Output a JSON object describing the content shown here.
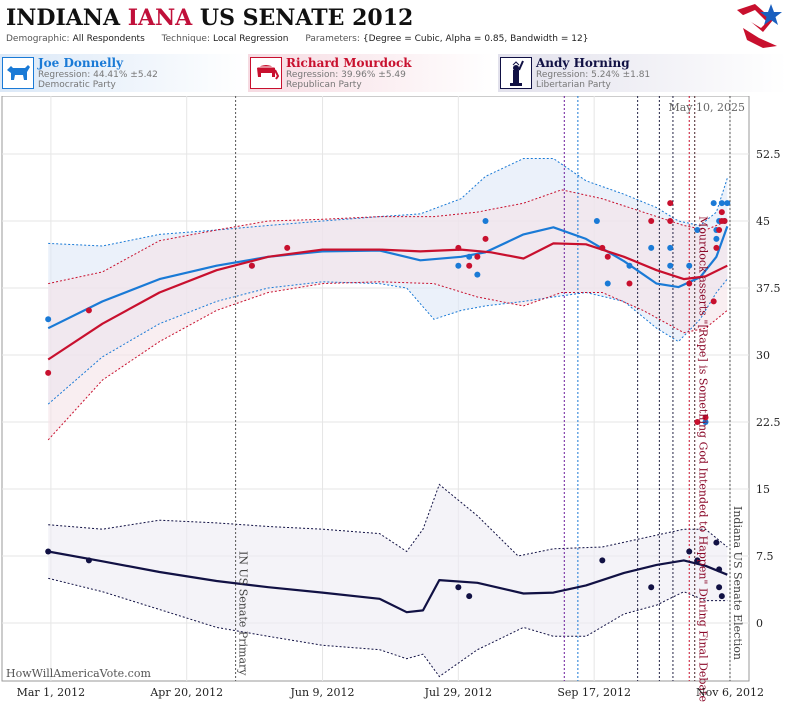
{
  "header": {
    "title_state": "INDIANA",
    "title_highlight": "IANA",
    "title_race": "US SENATE 2012",
    "demographic_label": "Demographic:",
    "demographic_value": "All Respondents",
    "technique_label": "Technique:",
    "technique_value": "Local Regression",
    "parameters_label": "Parameters:",
    "parameters_value": "{Degree = Cubic, Alpha = 0.85, Bandwidth = 12}"
  },
  "logo_icon": "star-flag-logo-icon",
  "candidates": [
    {
      "name": "Joe Donnelly",
      "regression": "Regression: 44.41% ±5.42",
      "party": "Democratic Party",
      "color": "#1a7ad6",
      "icon": "donkey-icon"
    },
    {
      "name": "Richard Mourdock",
      "regression": "Regression: 39.96% ±5.49",
      "party": "Republican Party",
      "color": "#c8102e",
      "icon": "elephant-icon"
    },
    {
      "name": "Andy Horning",
      "regression": "Regression: 5.24% ±1.81",
      "party": "Libertarian Party",
      "color": "#111144",
      "icon": "statue-of-liberty-icon"
    }
  ],
  "chart_data": {
    "type": "scatter",
    "date_stamp": "May 10, 2025",
    "watermark": "HowWillAmericaVote.com",
    "x_ticks": [
      "Mar 1, 2012",
      "Apr 20, 2012",
      "Jun 9, 2012",
      "Jul 29, 2012",
      "Sep 17, 2012",
      "Nov 6, 2012"
    ],
    "xlim": [
      "2012-02-12",
      "2012-11-13"
    ],
    "y_ticks": [
      0,
      7.5,
      15,
      22.5,
      30,
      37.5,
      45,
      52.5
    ],
    "ylim": [
      -6.5,
      59
    ],
    "grid": true,
    "annotations": [
      {
        "date": "2012-05-08",
        "text": "IN US Senate Primary",
        "color": "#444444"
      },
      {
        "date": "2012-11-06",
        "text": "Indiana US Senate Election",
        "color": "#444444"
      },
      {
        "date": "2012-10-24",
        "text": "Mourdock asserts \"[Rape] is Something God Intended to Happen\" During Final Debate",
        "color": "#8b0a2a"
      }
    ],
    "event_lines": [
      {
        "date": "2012-09-06",
        "color": "#6a1b9a"
      },
      {
        "date": "2012-09-11",
        "color": "#1a7ad6"
      },
      {
        "date": "2012-10-03",
        "color": "#222244"
      },
      {
        "date": "2012-10-11",
        "color": "#222244"
      },
      {
        "date": "2012-10-16",
        "color": "#222244"
      },
      {
        "date": "2012-10-22",
        "color": "#c8102e"
      },
      {
        "date": "2012-10-24",
        "color": "#c8102e"
      }
    ],
    "series": [
      {
        "name": "Joe Donnelly",
        "color": "#1a7ad6",
        "band_fill": "#dde8f6",
        "line": [
          [
            "2012-02-29",
            33
          ],
          [
            "2012-03-20",
            36
          ],
          [
            "2012-04-10",
            38.5
          ],
          [
            "2012-05-01",
            40
          ],
          [
            "2012-05-20",
            41
          ],
          [
            "2012-06-09",
            41.6
          ],
          [
            "2012-06-30",
            41.7
          ],
          [
            "2012-07-15",
            40.6
          ],
          [
            "2012-07-30",
            41
          ],
          [
            "2012-08-08",
            41.5
          ],
          [
            "2012-08-22",
            43.5
          ],
          [
            "2012-09-02",
            44.3
          ],
          [
            "2012-09-14",
            43
          ],
          [
            "2012-09-28",
            40.5
          ],
          [
            "2012-10-10",
            38
          ],
          [
            "2012-10-18",
            37.6
          ],
          [
            "2012-10-26",
            38.7
          ],
          [
            "2012-11-01",
            41
          ],
          [
            "2012-11-05",
            44.4
          ]
        ],
        "upper": [
          [
            "2012-02-29",
            42.5
          ],
          [
            "2012-03-20",
            42.2
          ],
          [
            "2012-04-10",
            43.5
          ],
          [
            "2012-05-01",
            44
          ],
          [
            "2012-05-20",
            44.5
          ],
          [
            "2012-06-09",
            45
          ],
          [
            "2012-06-30",
            45.5
          ],
          [
            "2012-07-15",
            45.8
          ],
          [
            "2012-07-30",
            47.5
          ],
          [
            "2012-08-08",
            50
          ],
          [
            "2012-08-22",
            52
          ],
          [
            "2012-09-02",
            52
          ],
          [
            "2012-09-14",
            49.5
          ],
          [
            "2012-09-28",
            48
          ],
          [
            "2012-10-10",
            46.5
          ],
          [
            "2012-10-18",
            45
          ],
          [
            "2012-10-26",
            44.5
          ],
          [
            "2012-11-01",
            46
          ],
          [
            "2012-11-05",
            49.8
          ]
        ],
        "lower": [
          [
            "2012-02-29",
            24.5
          ],
          [
            "2012-03-20",
            29.8
          ],
          [
            "2012-04-10",
            33.5
          ],
          [
            "2012-05-01",
            36
          ],
          [
            "2012-05-20",
            37.5
          ],
          [
            "2012-06-09",
            38.2
          ],
          [
            "2012-06-30",
            38
          ],
          [
            "2012-07-10",
            37.5
          ],
          [
            "2012-07-20",
            34
          ],
          [
            "2012-07-30",
            35
          ],
          [
            "2012-08-08",
            35.5
          ],
          [
            "2012-08-22",
            36
          ],
          [
            "2012-09-02",
            36.5
          ],
          [
            "2012-09-14",
            37
          ],
          [
            "2012-09-28",
            36
          ],
          [
            "2012-10-10",
            33
          ],
          [
            "2012-10-18",
            31.5
          ],
          [
            "2012-10-26",
            34
          ],
          [
            "2012-11-01",
            37
          ],
          [
            "2012-11-05",
            38.5
          ]
        ],
        "points": [
          [
            "2012-02-29",
            34
          ],
          [
            "2012-05-14",
            40
          ],
          [
            "2012-07-29",
            40
          ],
          [
            "2012-08-02",
            41
          ],
          [
            "2012-08-05",
            39
          ],
          [
            "2012-08-08",
            45
          ],
          [
            "2012-09-18",
            45
          ],
          [
            "2012-09-22",
            38
          ],
          [
            "2012-09-30",
            40
          ],
          [
            "2012-10-08",
            42
          ],
          [
            "2012-10-15",
            42
          ],
          [
            "2012-10-15",
            40
          ],
          [
            "2012-10-22",
            40
          ],
          [
            "2012-10-25",
            44
          ],
          [
            "2012-10-28",
            22.5
          ],
          [
            "2012-10-31",
            47
          ],
          [
            "2012-11-01",
            43
          ],
          [
            "2012-11-01",
            44
          ],
          [
            "2012-11-02",
            45
          ],
          [
            "2012-11-03",
            47
          ],
          [
            "2012-11-04",
            45
          ],
          [
            "2012-11-05",
            47
          ]
        ]
      },
      {
        "name": "Richard Mourdock",
        "color": "#c8102e",
        "band_fill": "#f5e3e8",
        "line": [
          [
            "2012-02-29",
            29.5
          ],
          [
            "2012-03-20",
            33.5
          ],
          [
            "2012-04-10",
            37
          ],
          [
            "2012-05-01",
            39.5
          ],
          [
            "2012-05-20",
            41
          ],
          [
            "2012-06-09",
            41.8
          ],
          [
            "2012-06-30",
            41.8
          ],
          [
            "2012-07-15",
            41.6
          ],
          [
            "2012-07-30",
            41.8
          ],
          [
            "2012-08-10",
            41.5
          ],
          [
            "2012-08-22",
            40.8
          ],
          [
            "2012-09-02",
            42.5
          ],
          [
            "2012-09-14",
            42.4
          ],
          [
            "2012-09-28",
            41
          ],
          [
            "2012-10-10",
            39.5
          ],
          [
            "2012-10-20",
            38.5
          ],
          [
            "2012-10-28",
            38.8
          ],
          [
            "2012-11-05",
            40
          ]
        ],
        "upper": [
          [
            "2012-02-29",
            38
          ],
          [
            "2012-03-20",
            39.3
          ],
          [
            "2012-04-10",
            42.8
          ],
          [
            "2012-05-01",
            44
          ],
          [
            "2012-05-20",
            45
          ],
          [
            "2012-06-09",
            45.2
          ],
          [
            "2012-06-30",
            45.5
          ],
          [
            "2012-07-20",
            45.5
          ],
          [
            "2012-08-05",
            46
          ],
          [
            "2012-08-22",
            47
          ],
          [
            "2012-09-05",
            48.5
          ],
          [
            "2012-09-20",
            47.5
          ],
          [
            "2012-10-05",
            46
          ],
          [
            "2012-10-20",
            44.5
          ],
          [
            "2012-10-28",
            44
          ],
          [
            "2012-11-05",
            45
          ]
        ],
        "lower": [
          [
            "2012-02-29",
            20.5
          ],
          [
            "2012-03-20",
            27.2
          ],
          [
            "2012-04-10",
            31.5
          ],
          [
            "2012-05-01",
            35
          ],
          [
            "2012-05-20",
            37
          ],
          [
            "2012-06-09",
            38
          ],
          [
            "2012-06-30",
            38.2
          ],
          [
            "2012-07-20",
            38
          ],
          [
            "2012-08-05",
            36.5
          ],
          [
            "2012-08-22",
            35.5
          ],
          [
            "2012-09-05",
            37
          ],
          [
            "2012-09-20",
            37
          ],
          [
            "2012-10-05",
            35
          ],
          [
            "2012-10-20",
            32.5
          ],
          [
            "2012-10-28",
            33
          ],
          [
            "2012-11-05",
            35
          ]
        ],
        "points": [
          [
            "2012-02-29",
            28
          ],
          [
            "2012-03-15",
            35
          ],
          [
            "2012-05-14",
            40
          ],
          [
            "2012-05-27",
            42
          ],
          [
            "2012-07-29",
            42
          ],
          [
            "2012-08-02",
            40
          ],
          [
            "2012-08-05",
            41
          ],
          [
            "2012-08-08",
            43
          ],
          [
            "2012-09-20",
            42
          ],
          [
            "2012-09-22",
            41
          ],
          [
            "2012-09-30",
            38
          ],
          [
            "2012-10-08",
            45
          ],
          [
            "2012-10-15",
            47
          ],
          [
            "2012-10-15",
            45
          ],
          [
            "2012-10-22",
            38
          ],
          [
            "2012-10-25",
            22.5
          ],
          [
            "2012-10-28",
            23
          ],
          [
            "2012-10-31",
            36
          ],
          [
            "2012-11-01",
            42
          ],
          [
            "2012-11-02",
            44
          ],
          [
            "2012-11-03",
            46
          ],
          [
            "2012-11-03",
            45
          ],
          [
            "2012-11-04",
            45
          ]
        ]
      },
      {
        "name": "Andy Horning",
        "color": "#111144",
        "band_fill": "#ecebf3",
        "line": [
          [
            "2012-02-29",
            8
          ],
          [
            "2012-03-20",
            6.9
          ],
          [
            "2012-04-10",
            5.7
          ],
          [
            "2012-05-01",
            4.7
          ],
          [
            "2012-05-20",
            4
          ],
          [
            "2012-06-09",
            3.4
          ],
          [
            "2012-06-30",
            2.7
          ],
          [
            "2012-07-10",
            1.2
          ],
          [
            "2012-07-16",
            1.4
          ],
          [
            "2012-07-22",
            4.8
          ],
          [
            "2012-08-05",
            4.5
          ],
          [
            "2012-08-22",
            3.3
          ],
          [
            "2012-09-02",
            3.4
          ],
          [
            "2012-09-14",
            4.2
          ],
          [
            "2012-09-28",
            5.6
          ],
          [
            "2012-10-10",
            6.5
          ],
          [
            "2012-10-20",
            7
          ],
          [
            "2012-10-28",
            6.4
          ],
          [
            "2012-11-05",
            5.4
          ]
        ],
        "upper": [
          [
            "2012-02-29",
            11
          ],
          [
            "2012-03-20",
            10.5
          ],
          [
            "2012-04-10",
            11.5
          ],
          [
            "2012-05-01",
            11.2
          ],
          [
            "2012-05-20",
            10.8
          ],
          [
            "2012-06-09",
            10.5
          ],
          [
            "2012-06-30",
            10
          ],
          [
            "2012-07-10",
            8
          ],
          [
            "2012-07-16",
            10.5
          ],
          [
            "2012-07-22",
            15.5
          ],
          [
            "2012-08-05",
            12
          ],
          [
            "2012-08-20",
            7.5
          ],
          [
            "2012-09-02",
            8.3
          ],
          [
            "2012-09-20",
            8.5
          ],
          [
            "2012-10-05",
            9.5
          ],
          [
            "2012-10-20",
            10.5
          ],
          [
            "2012-10-28",
            10.5
          ],
          [
            "2012-11-05",
            8.5
          ]
        ],
        "lower": [
          [
            "2012-02-29",
            5
          ],
          [
            "2012-03-20",
            3.5
          ],
          [
            "2012-04-10",
            1.5
          ],
          [
            "2012-05-01",
            -0.5
          ],
          [
            "2012-05-20",
            -1.5
          ],
          [
            "2012-06-09",
            -2.5
          ],
          [
            "2012-06-30",
            -3
          ],
          [
            "2012-07-10",
            -4
          ],
          [
            "2012-07-16",
            -3.5
          ],
          [
            "2012-07-22",
            -6
          ],
          [
            "2012-08-05",
            -3
          ],
          [
            "2012-08-22",
            -0.5
          ],
          [
            "2012-09-02",
            -1.5
          ],
          [
            "2012-09-14",
            -1.5
          ],
          [
            "2012-09-28",
            1
          ],
          [
            "2012-10-10",
            2
          ],
          [
            "2012-10-20",
            3.5
          ],
          [
            "2012-10-28",
            2.5
          ],
          [
            "2012-11-05",
            2.5
          ]
        ],
        "points": [
          [
            "2012-02-29",
            8
          ],
          [
            "2012-03-15",
            7
          ],
          [
            "2012-07-29",
            4
          ],
          [
            "2012-08-02",
            3
          ],
          [
            "2012-09-20",
            7
          ],
          [
            "2012-10-08",
            4
          ],
          [
            "2012-10-22",
            8
          ],
          [
            "2012-10-25",
            7
          ],
          [
            "2012-11-01",
            9
          ],
          [
            "2012-11-02",
            6
          ],
          [
            "2012-11-02",
            4
          ],
          [
            "2012-11-03",
            3
          ]
        ]
      }
    ]
  }
}
